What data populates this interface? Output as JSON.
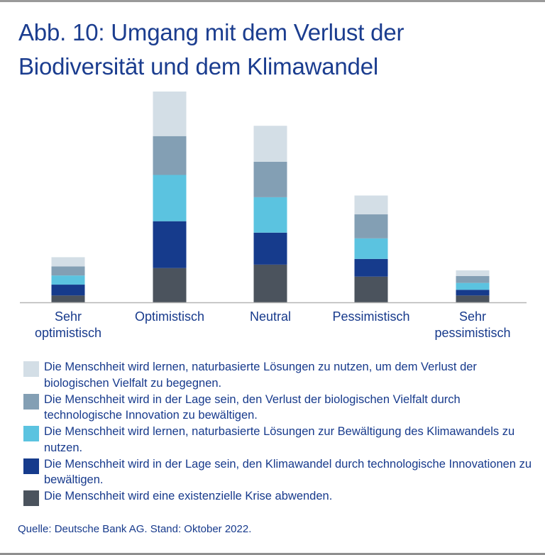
{
  "title": "Abb. 10: Umgang mit dem Verlust der Biodiversität und dem Klimawandel",
  "source": "Quelle: Deutsche Bank AG. Stand: Oktober 2022.",
  "chart_data": {
    "type": "bar",
    "stacked": true,
    "title": "Abb. 10: Umgang mit dem Verlust der Biodiversität und dem Klimawandel",
    "categories": [
      [
        "Sehr",
        "optimistisch"
      ],
      [
        "Optimistisch"
      ],
      [
        "Neutral"
      ],
      [
        "Pessimistisch"
      ],
      [
        "Sehr",
        "pessimistisch"
      ]
    ],
    "value_unit": "relative share (estimated, no axis printed)",
    "ylim": [
      0,
      37
    ],
    "grid": false,
    "legend_position": "bottom",
    "series": [
      {
        "name": "Die Menschheit wird eine existenzielle Krise abwenden.",
        "color": "#4b535d",
        "values": [
          1.2,
          6.0,
          6.6,
          4.5,
          1.2
        ]
      },
      {
        "name": "Die Menschheit wird in der Lage sein, den Klimawandel durch technologische Innovationen zu bewältigen.",
        "color": "#163b8c",
        "values": [
          1.9,
          8.2,
          5.6,
          3.1,
          1.0
        ]
      },
      {
        "name": "Die Menschheit wird lernen, naturbasierte Lösungen zur Bewältigung des Klimawandels zu nutzen.",
        "color": "#5bc3e0",
        "values": [
          1.6,
          8.1,
          6.2,
          3.6,
          1.2
        ]
      },
      {
        "name": "Die Menschheit wird in der Lage sein, den Verlust der biologischen Vielfalt durch technologische Innovation zu bewältigen.",
        "color": "#839fb4",
        "values": [
          1.6,
          6.8,
          6.2,
          4.2,
          1.2
        ]
      },
      {
        "name": "Die Menschheit wird lernen, naturbasierte Lösungen zu nutzen, um dem Verlust der biologischen Vielfalt zu begegnen.",
        "color": "#d3dee6",
        "values": [
          1.6,
          7.8,
          6.3,
          3.3,
          1.0
        ]
      }
    ]
  }
}
